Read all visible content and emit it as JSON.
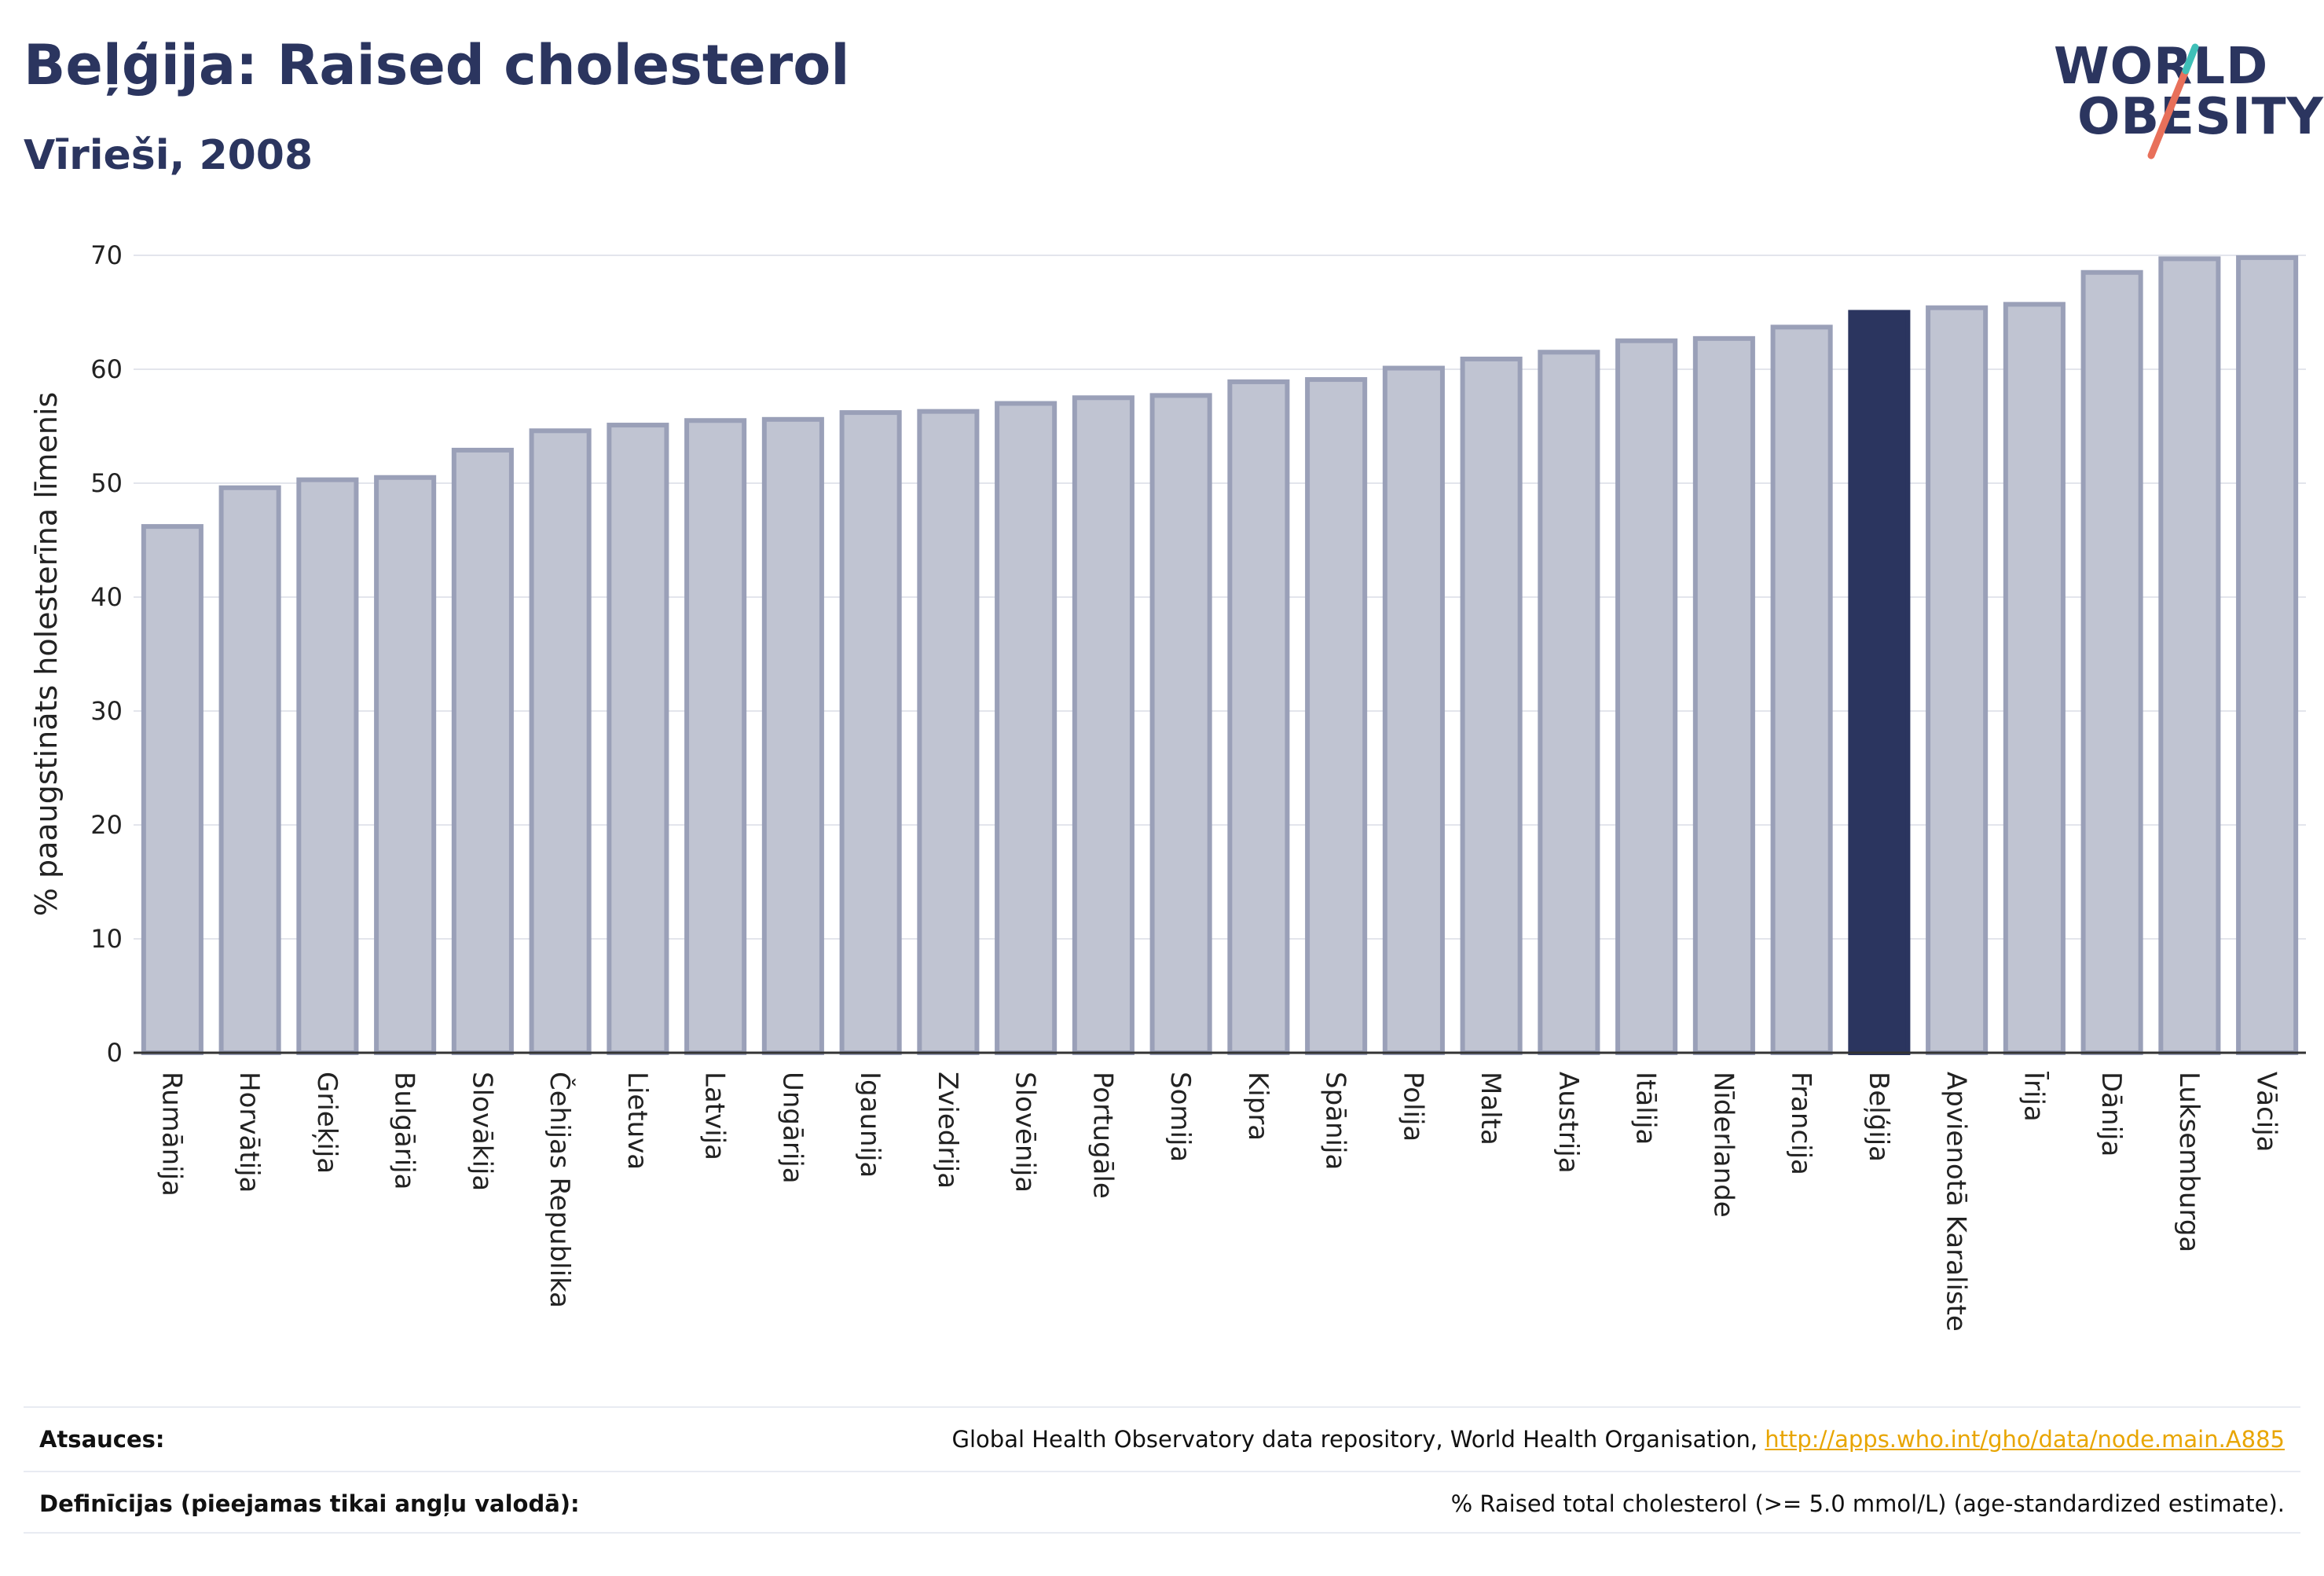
{
  "header": {
    "title": "Beļģija: Raised cholesterol",
    "subtitle": "Vīrieši, 2008"
  },
  "logo": {
    "line1": "WORLD",
    "line2": "OBESITY"
  },
  "colors": {
    "bar": "#c0c4d2",
    "bar_stroke": "#9aa0b8",
    "highlight": "#2b355f",
    "grid": "#e3e5ec",
    "link": "#e8a500"
  },
  "chart_data": {
    "type": "bar",
    "ylabel": "% paaugstināts holesterīna līmenis",
    "xlabel": "",
    "ylim": [
      0,
      70
    ],
    "yticks": [
      0,
      10,
      20,
      30,
      40,
      50,
      60,
      70
    ],
    "grid": true,
    "highlight_category": "Beļģija",
    "categories": [
      "Rumānija",
      "Horvātija",
      "Grieķija",
      "Bulgārija",
      "Slovākija",
      "Čehijas Republika",
      "Lietuva",
      "Latvija",
      "Ungārija",
      "Igaunija",
      "Zviedrija",
      "Slovēnija",
      "Portugāle",
      "Somija",
      "Kipra",
      "Spānija",
      "Polija",
      "Malta",
      "Austrija",
      "Itālija",
      "Nīderlande",
      "Francija",
      "Beļģija",
      "Apvienotā Karaliste",
      "Īrija",
      "Dānija",
      "Luksemburga",
      "Vācija"
    ],
    "values": [
      46.2,
      49.6,
      50.3,
      50.5,
      52.9,
      54.6,
      55.1,
      55.5,
      55.6,
      56.2,
      56.3,
      57.0,
      57.5,
      57.7,
      58.9,
      59.1,
      60.1,
      60.9,
      61.5,
      62.5,
      62.7,
      63.7,
      65.0,
      65.4,
      65.7,
      68.5,
      69.7,
      69.8
    ]
  },
  "footer": {
    "sources_label": "Atsauces:",
    "sources_text": "Global Health Observatory data repository, World Health Organisation,",
    "sources_link": "http://apps.who.int/gho/data/node.main.A885",
    "definitions_label": "Definīcijas (pieejamas tikai angļu valodā):",
    "definitions_text": "% Raised total cholesterol (>= 5.0 mmol/L) (age-standardized estimate)."
  }
}
